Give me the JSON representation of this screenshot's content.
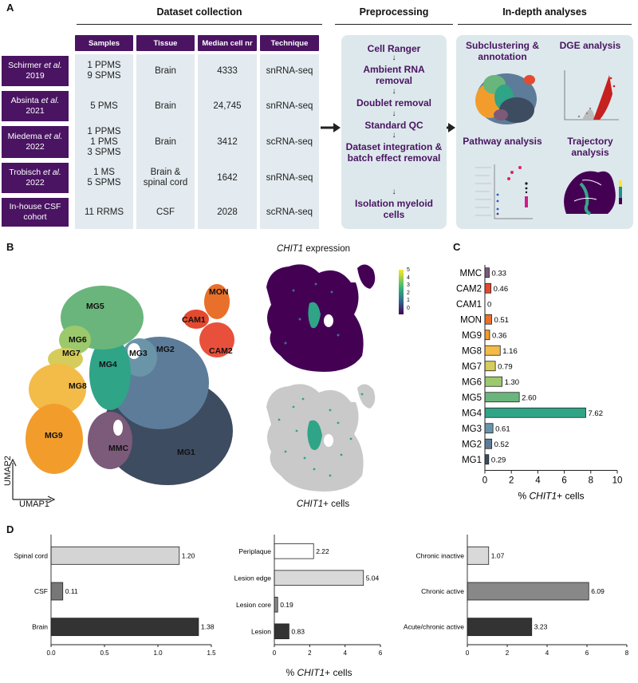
{
  "panel_letters": {
    "a": "A",
    "b": "B",
    "c": "C",
    "d": "D"
  },
  "panel_a": {
    "section_titles": {
      "collection": "Dataset collection",
      "preprocessing": "Preprocessing",
      "analyses": "In-depth analyses"
    },
    "columns": [
      "Samples",
      "Tissue",
      "Median cell nr",
      "Technique"
    ],
    "rows": [
      {
        "study_a": "Schirmer ",
        "study_em": "et al.",
        "study_b": "2019",
        "samples": [
          "1 PPMS",
          "9 SPMS"
        ],
        "tissue": [
          "Brain"
        ],
        "cells": "4333",
        "technique": "snRNA-seq"
      },
      {
        "study_a": "Absinta ",
        "study_em": "et al.",
        "study_b": "2021",
        "samples": [
          "5 PMS"
        ],
        "tissue": [
          "Brain"
        ],
        "cells": "24,745",
        "technique": "snRNA-seq"
      },
      {
        "study_a": "Miedema ",
        "study_em": "et al.",
        "study_b": "2022",
        "samples": [
          "1 PPMS",
          "1 PMS",
          "3 SPMS"
        ],
        "tissue": [
          "Brain"
        ],
        "cells": "3412",
        "technique": "scRNA-seq"
      },
      {
        "study_a": "Trobisch ",
        "study_em": "et al.",
        "study_b": "2022",
        "samples": [
          "1 MS",
          "5 SPMS"
        ],
        "tissue": [
          "Brain &",
          "spinal cord"
        ],
        "cells": "1642",
        "technique": "snRNA-seq"
      },
      {
        "study_a": "In-house CSF",
        "study_em": "",
        "study_b": "cohort",
        "samples": [
          "11 RRMS"
        ],
        "tissue": [
          "CSF"
        ],
        "cells": "2028",
        "technique": "scRNA-seq"
      }
    ],
    "preprocessing_steps": [
      "Cell Ranger",
      "Ambient RNA removal",
      "Doublet removal",
      "Standard QC",
      "Dataset integration & batch effect removal",
      "Isolation myeloid cells"
    ],
    "analyses": [
      "Subclustering & annotation",
      "DGE analysis",
      "Pathway analysis",
      "Trajectory analysis"
    ],
    "arrow_glyph": "↓"
  },
  "panel_b": {
    "cluster_labels": [
      "MON",
      "CAM1",
      "CAM2",
      "MG5",
      "MG6",
      "MG7",
      "MG2",
      "MG3",
      "MG4",
      "MG8",
      "MG9",
      "MMC",
      "MG1"
    ],
    "axis_x": "UMAP1",
    "axis_y": "UMAP2",
    "expression_title_gene": "CHIT1",
    "expression_title_rest": " expression",
    "positive_title_gene": "CHIT1",
    "positive_title_rest": "+ cells",
    "colorbar_ticks": [
      "5",
      "4",
      "3",
      "2",
      "1",
      "0"
    ],
    "colors": {
      "MG1": "#3d4c60",
      "MG2": "#5d7c99",
      "MG3": "#6a95a9",
      "MG4": "#2fa487",
      "MG5": "#6ab57c",
      "MG6": "#9cc96b",
      "MG7": "#d6cc5c",
      "MG8": "#f3bb47",
      "MG9": "#f29d2b",
      "MMC": "#7b5a7a",
      "MON": "#e8702a",
      "CAM1": "#e44a2f",
      "CAM2": "#e8503b",
      "positive": "#2fa487",
      "background": "#c9c9c9",
      "expr_low": "#440154"
    }
  },
  "chart_data": [
    {
      "id": "C",
      "type": "bar",
      "orientation": "horizontal",
      "categories": [
        "MMC",
        "CAM2",
        "CAM1",
        "MON",
        "MG9",
        "MG8",
        "MG7",
        "MG6",
        "MG5",
        "MG4",
        "MG3",
        "MG2",
        "MG1"
      ],
      "values": [
        0.33,
        0.46,
        0,
        0.51,
        0.36,
        1.16,
        0.79,
        1.3,
        2.6,
        7.62,
        0.61,
        0.52,
        0.29
      ],
      "value_labels": [
        "0.33",
        "0.46",
        "0",
        "0.51",
        "0.36",
        "1.16",
        "0.79",
        "1.30",
        "2.60",
        "7.62",
        "0.61",
        "0.52",
        "0.29"
      ],
      "colors": [
        "#7b5a7a",
        "#e44a2f",
        "#e44a2f",
        "#e8702a",
        "#f29d2b",
        "#f3bb47",
        "#d6cc5c",
        "#9cc96b",
        "#6ab57c",
        "#2fa487",
        "#6a95a9",
        "#5d7c99",
        "#3d4c60"
      ],
      "xlim": [
        0,
        10
      ],
      "xticks": [
        "0",
        "2",
        "4",
        "6",
        "8",
        "10"
      ],
      "xlabel_pre": "% ",
      "xlabel_gene": "CHIT1",
      "xlabel_post": "+ cells"
    },
    {
      "id": "D1",
      "type": "bar",
      "orientation": "horizontal",
      "categories": [
        "Spinal cord",
        "CSF",
        "Brain"
      ],
      "values": [
        1.2,
        0.11,
        1.38
      ],
      "value_labels": [
        "1.20",
        "0.11",
        "1.38"
      ],
      "colors": [
        "#d4d4d4",
        "#777777",
        "#333333"
      ],
      "xlim": [
        0,
        1.5
      ],
      "xticks": [
        "0.0",
        "0.5",
        "1.0",
        "1.5"
      ]
    },
    {
      "id": "D2",
      "type": "bar",
      "orientation": "horizontal",
      "categories": [
        "Periplaque",
        "Lesion edge",
        "Lesion core",
        "Lesion"
      ],
      "values": [
        2.22,
        5.04,
        0.19,
        0.83
      ],
      "value_labels": [
        "2.22",
        "5.04",
        "0.19",
        "0.83"
      ],
      "colors": [
        "#ffffff",
        "#d9d9d9",
        "#888888",
        "#333333"
      ],
      "xlim": [
        0,
        6
      ],
      "xticks": [
        "0",
        "2",
        "4",
        "6"
      ]
    },
    {
      "id": "D3",
      "type": "bar",
      "orientation": "horizontal",
      "categories": [
        "Chronic inactive",
        "Chronic active",
        "Acute/chronic active"
      ],
      "values": [
        1.07,
        6.09,
        3.23
      ],
      "value_labels": [
        "1.07",
        "6.09",
        "3.23"
      ],
      "colors": [
        "#d9d9d9",
        "#888888",
        "#333333"
      ],
      "xlim": [
        0,
        8
      ],
      "xticks": [
        "0",
        "2",
        "4",
        "6",
        "8"
      ]
    }
  ],
  "panel_d_xlabel": {
    "pre": "% ",
    "gene": "CHIT1",
    "post": "+ cells"
  }
}
